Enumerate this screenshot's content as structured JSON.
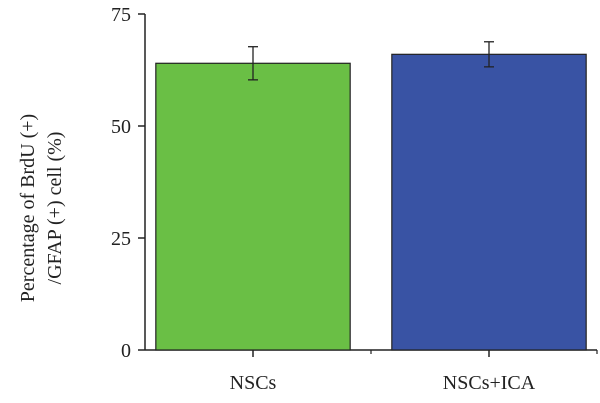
{
  "chart_data": {
    "type": "bar",
    "categories": [
      "NSCs",
      "NSCs+ICA"
    ],
    "values": [
      64,
      66
    ],
    "errors": [
      3.7,
      2.8
    ],
    "colors": [
      "#6abf45",
      "#3953a4"
    ],
    "ylabel_lines": [
      "Percentage of BrdU (+)",
      "/GFAP (+) cell (%)"
    ],
    "xlabel": "",
    "ylim": [
      0,
      75
    ],
    "yticks": [
      0,
      25,
      50,
      75
    ],
    "grid": false,
    "legend": "none"
  }
}
